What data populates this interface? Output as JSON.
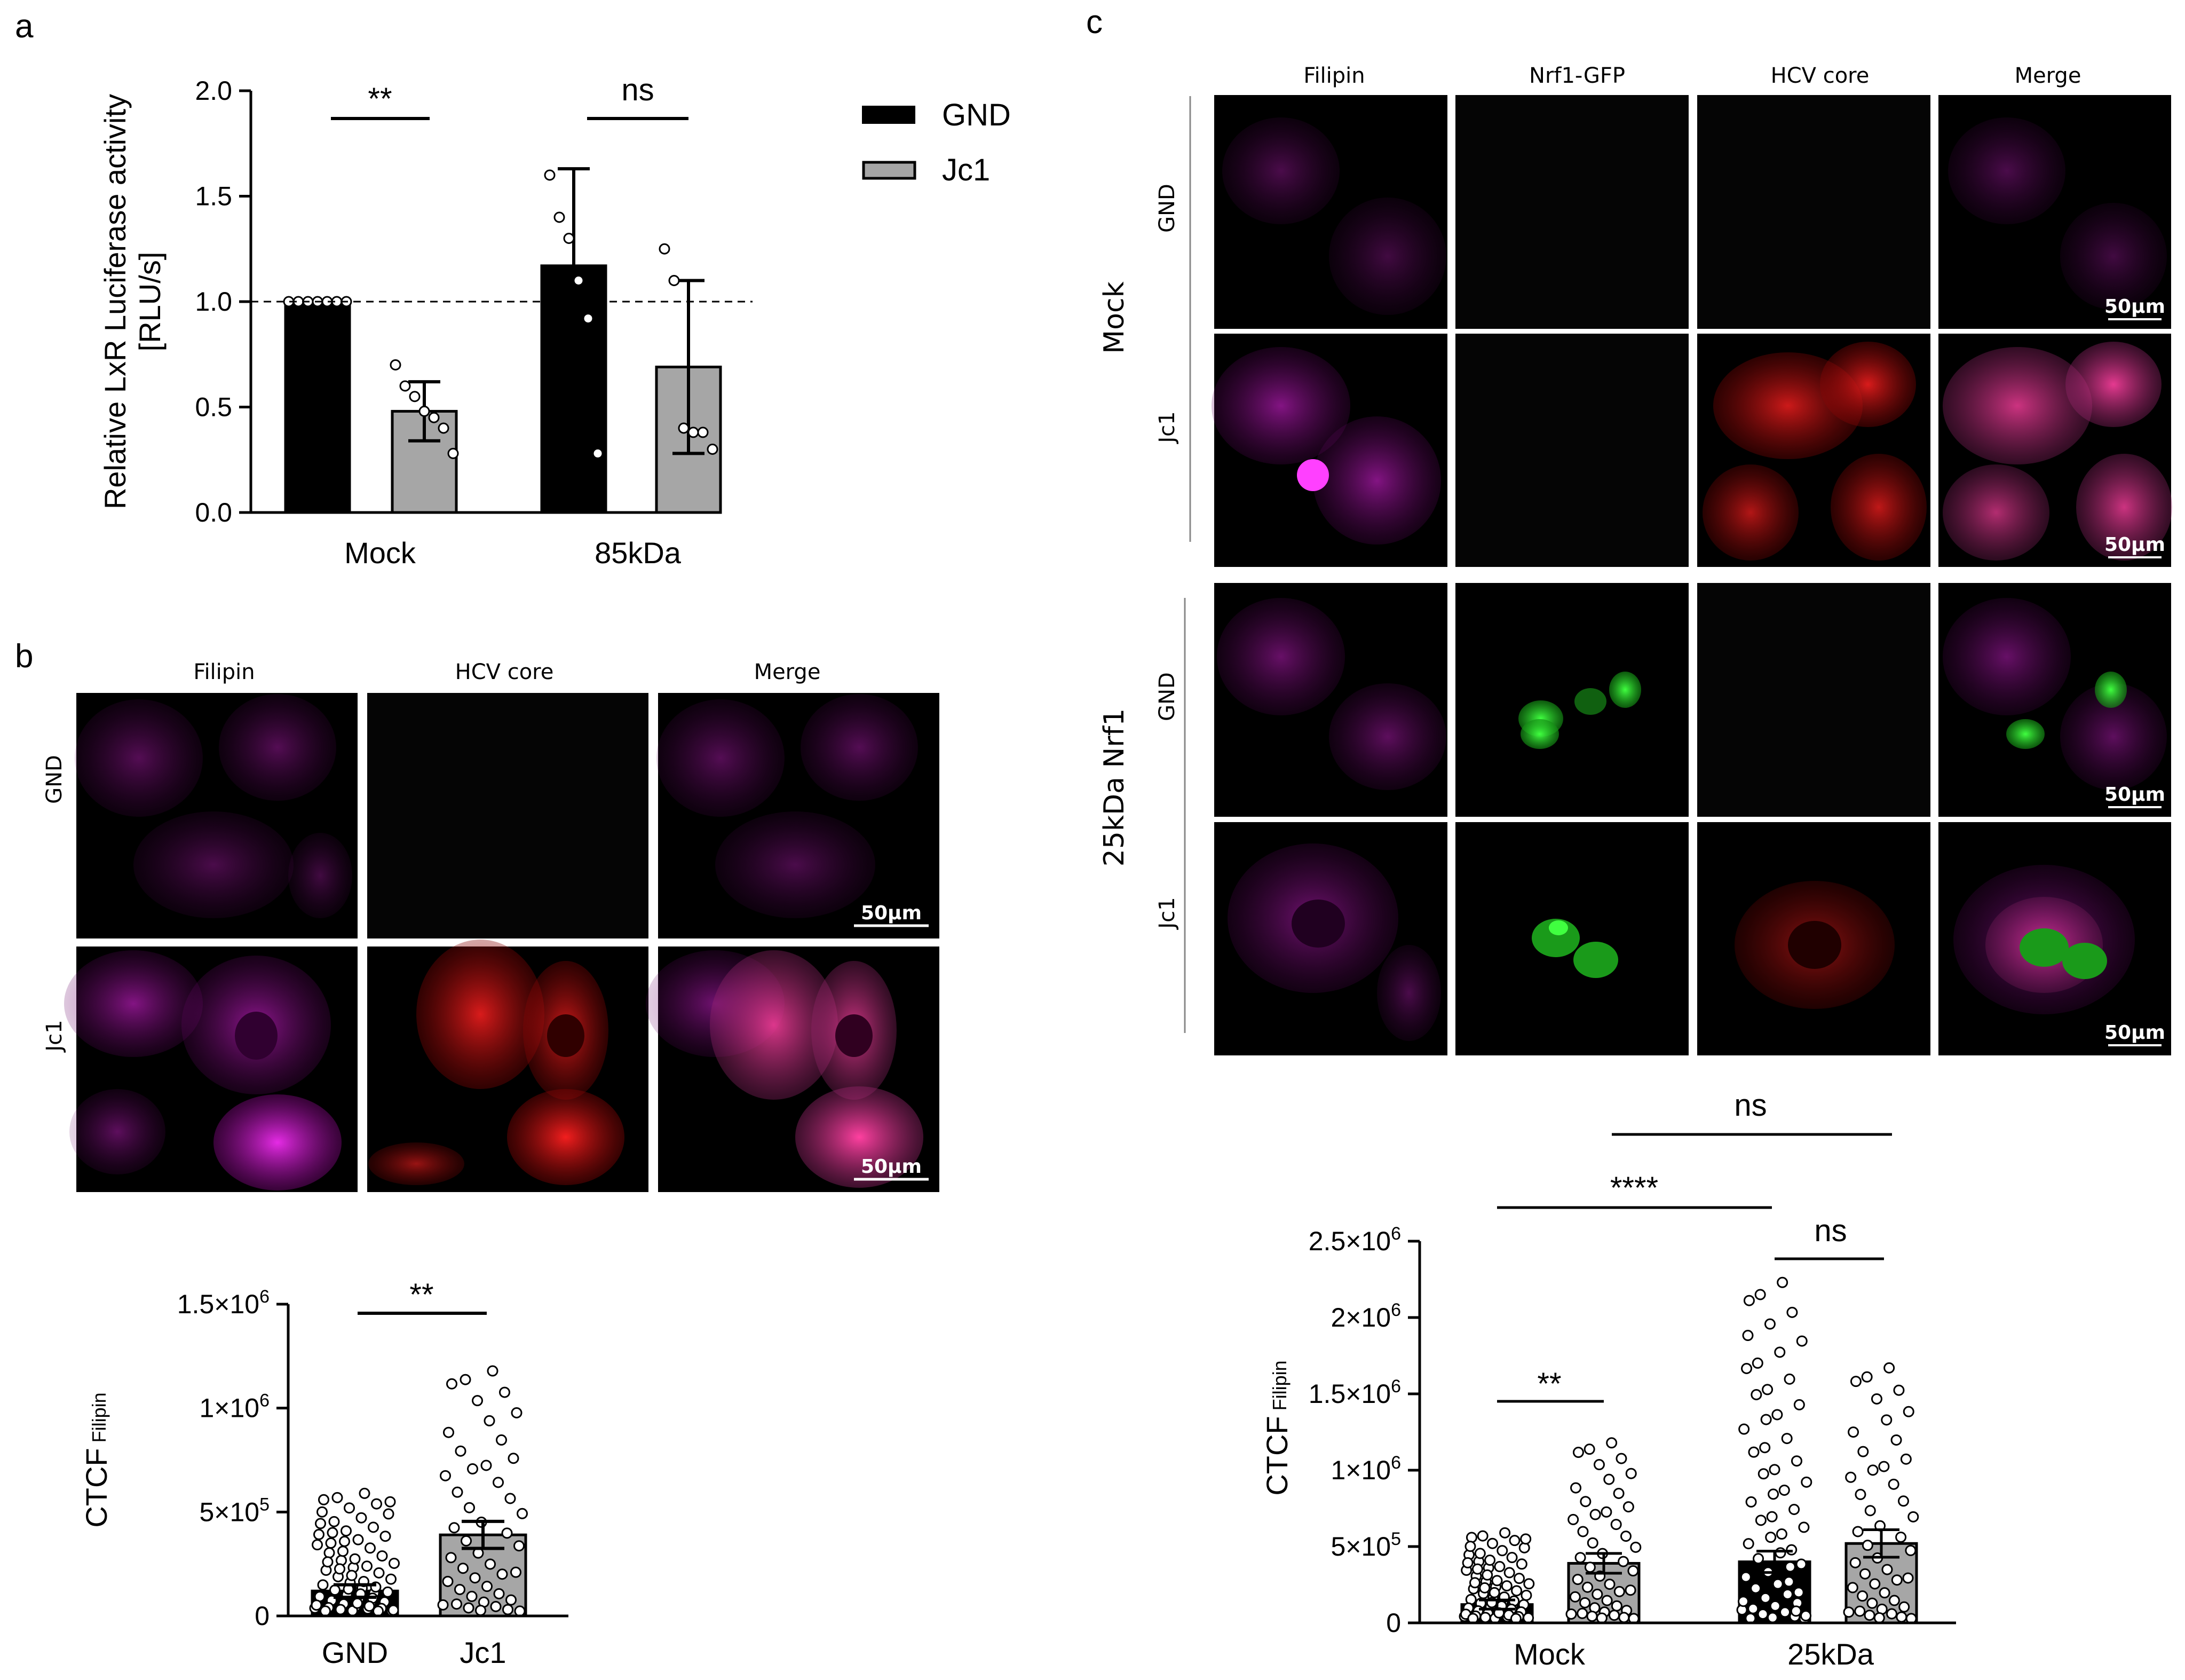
{
  "colors": {
    "black_bar": "#000000",
    "gray_bar": "#a6a6a6",
    "filipin": "#b000b0",
    "hcv_core": "#e01010",
    "gfp": "#20e020",
    "microscopy_bg": "#000000"
  },
  "panel_labels": {
    "a": "a",
    "b": "b",
    "c": "c"
  },
  "chart_data": [
    {
      "id": "panel-a",
      "type": "bar",
      "ylabel_line1": "Relative LxR Luciferase activity",
      "ylabel_line2": "[RLU/s]",
      "ylim": [
        0,
        2.0
      ],
      "yticks": [
        "0.0",
        "0.5",
        "1.0",
        "1.5",
        "2.0"
      ],
      "ytick_values": [
        0,
        0.5,
        1.0,
        1.5,
        2.0
      ],
      "reference_line": 1.0,
      "categories": [
        "Mock",
        "85kDa"
      ],
      "series": [
        {
          "name": "GND",
          "color": "#000000",
          "values": [
            1.0,
            1.17
          ],
          "errors": [
            0.0,
            0.46
          ],
          "points": [
            [
              1.0,
              1.0,
              1.0,
              1.0,
              1.0,
              1.0,
              1.0
            ],
            [
              1.6,
              1.4,
              1.3,
              1.1,
              0.92,
              0.28
            ]
          ]
        },
        {
          "name": "Jc1",
          "color": "#a6a6a6",
          "values": [
            0.48,
            0.69
          ],
          "errors": [
            0.14,
            0.41
          ],
          "points": [
            [
              0.7,
              0.6,
              0.55,
              0.48,
              0.45,
              0.4,
              0.28
            ],
            [
              1.25,
              1.1,
              0.4,
              0.38,
              0.38,
              0.3
            ]
          ]
        }
      ],
      "significance": [
        "**",
        "ns"
      ],
      "legend": [
        "GND",
        "Jc1"
      ],
      "legend_position": "top-right"
    },
    {
      "id": "panel-b-chart",
      "type": "bar",
      "ylabel_main": "CTCF",
      "ylabel_sub": "Filipin",
      "ylim": [
        0,
        1500000
      ],
      "ytick_values": [
        0,
        500000,
        1000000,
        1500000
      ],
      "yticks": [
        "0",
        "5×10",
        "1×10",
        "1.5×10"
      ],
      "ytick_exp": [
        "",
        "5",
        "6",
        "6"
      ],
      "categories": [
        "GND",
        "Jc1"
      ],
      "values": [
        120000,
        390000
      ],
      "errors": [
        30000,
        65000
      ],
      "bar_colors": [
        "#000000",
        "#a6a6a6"
      ],
      "significance": [
        "**"
      ]
    },
    {
      "id": "panel-c-chart",
      "type": "bar",
      "ylabel_main": "CTCF",
      "ylabel_sub": "Filipin",
      "ylim": [
        0,
        2500000
      ],
      "ytick_values": [
        0,
        500000,
        1000000,
        1500000,
        2000000,
        2500000
      ],
      "yticks": [
        "0",
        "5×10",
        "1×10",
        "1.5×10",
        "2×10",
        "2.5×10"
      ],
      "ytick_exp": [
        "",
        "5",
        "6",
        "6",
        "6",
        "6"
      ],
      "categories": [
        "Mock",
        "25kDa"
      ],
      "series": [
        {
          "name": "GND",
          "color": "#000000",
          "values": [
            120000,
            400000
          ],
          "errors": [
            30000,
            70000
          ]
        },
        {
          "name": "Jc1",
          "color": "#a6a6a6",
          "values": [
            390000,
            520000
          ],
          "errors": [
            65000,
            90000
          ]
        }
      ],
      "significance": [
        "**",
        "ns",
        "****",
        "ns"
      ]
    }
  ],
  "panel_b_images": {
    "columns": [
      "Filipin",
      "HCV core",
      "Merge"
    ],
    "rows": [
      "GND",
      "Jc1"
    ],
    "scale_bar": "50µm"
  },
  "panel_c_images": {
    "columns": [
      "Filipin",
      "Nrf1-GFP",
      "HCV core",
      "Merge"
    ],
    "groups": [
      "Mock",
      "25kDa Nrf1"
    ],
    "rows": [
      "GND",
      "Jc1",
      "GND",
      "Jc1"
    ],
    "scale_bar": "50µm"
  }
}
